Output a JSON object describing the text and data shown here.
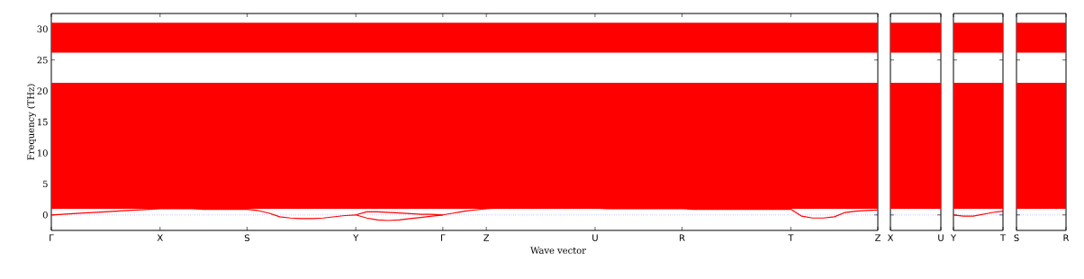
{
  "chart_data": [
    {
      "type": "line",
      "xlabel": "Wave vector",
      "ylabel": "Frequency (THz)",
      "ylim": [
        -2.5,
        32.5
      ],
      "categories": [
        "Γ",
        null,
        null,
        null,
        null,
        null,
        null,
        null,
        null,
        null,
        "X",
        null,
        null,
        null,
        null,
        null,
        null,
        null,
        "S",
        null,
        null,
        null,
        null,
        null,
        null,
        null,
        null,
        null,
        "Y",
        null,
        null,
        null,
        null,
        null,
        null,
        null,
        "Γ",
        null,
        null,
        null,
        "Z",
        null,
        null,
        null,
        null,
        null,
        null,
        null,
        null,
        null,
        "U",
        null,
        null,
        null,
        null,
        null,
        null,
        null,
        "R",
        null,
        null,
        null,
        null,
        null,
        null,
        null,
        null,
        null,
        "T",
        null,
        null,
        null,
        null,
        null,
        null,
        null,
        "Z"
      ],
      "yticks": [
        0,
        5,
        10,
        15,
        20,
        25,
        30
      ],
      "bands": [
        {
          "axis": "y",
          "from": 1.0,
          "to": 21.3,
          "color": "#ff0000"
        },
        {
          "axis": "y",
          "from": 26.2,
          "to": 31.0,
          "color": "#ff0000"
        }
      ],
      "ref_lines": [
        {
          "axis": "y",
          "value": 0,
          "color": "#0000ff",
          "line_style": "dotted"
        }
      ],
      "series": [
        {
          "color": "#ff0000",
          "values": [
            0,
            0.1,
            0.2,
            0.3,
            0.4,
            0.5,
            0.6,
            0.7,
            0.8,
            0.9,
            1.0,
            1.0,
            1.0,
            1.0,
            0.9,
            0.9,
            0.9,
            0.9,
            0.9,
            0.7,
            0.3,
            -0.3,
            -0.5,
            -0.6,
            -0.6,
            -0.5,
            -0.3,
            -0.1,
            0,
            -0.5,
            -0.8,
            -0.9,
            -0.8,
            -0.6,
            -0.4,
            -0.2,
            0,
            0.3,
            0.6,
            0.8,
            1.0,
            1.1,
            1.1,
            1.1,
            1.1,
            1.1,
            1.1,
            1.1,
            1.1,
            1.1,
            1.1,
            1.0,
            1.0,
            1.0,
            1.0,
            1.0,
            1.0,
            1.0,
            1.0,
            0.9,
            0.9,
            0.9,
            0.9,
            0.9,
            0.9,
            0.9,
            0.9,
            0.9,
            0.9,
            -0.2,
            -0.5,
            -0.5,
            -0.3,
            0.4,
            0.6,
            0.7,
            0.8
          ]
        },
        {
          "color": "#ff0000",
          "values": [
            null,
            null,
            null,
            null,
            null,
            null,
            null,
            null,
            null,
            null,
            null,
            null,
            null,
            null,
            null,
            null,
            null,
            null,
            null,
            null,
            null,
            null,
            null,
            null,
            null,
            null,
            null,
            null,
            0,
            0.5,
            0.5,
            0.4,
            0.3,
            0.2,
            0.1,
            0.1,
            0,
            null,
            null,
            null,
            null,
            null,
            null,
            null,
            null,
            null,
            null,
            null,
            null,
            null,
            null,
            null,
            null,
            null,
            null,
            null,
            null,
            null,
            null,
            null,
            null,
            null,
            null,
            null,
            null,
            null,
            null,
            null,
            null,
            null,
            null,
            null,
            null,
            null,
            null,
            null,
            null
          ]
        }
      ]
    },
    {
      "type": "line",
      "ylim": [
        -2.5,
        32.5
      ],
      "tick_labels": "x",
      "categories": [
        "X",
        null,
        null,
        null,
        null,
        "U"
      ],
      "yticks": [
        0,
        5,
        10,
        15,
        20,
        25,
        30
      ],
      "bands": [
        {
          "axis": "y",
          "from": 1.0,
          "to": 21.3,
          "color": "#ff0000"
        },
        {
          "axis": "y",
          "from": 26.2,
          "to": 31.0,
          "color": "#ff0000"
        }
      ],
      "ref_lines": [
        {
          "axis": "y",
          "value": 0,
          "color": "#0000ff",
          "line_style": "dotted"
        }
      ]
    },
    {
      "type": "line",
      "ylim": [
        -2.5,
        32.5
      ],
      "tick_labels": "x",
      "categories": [
        "Y",
        null,
        null,
        null,
        null,
        "T"
      ],
      "yticks": [
        0,
        5,
        10,
        15,
        20,
        25,
        30
      ],
      "bands": [
        {
          "axis": "y",
          "from": 1.0,
          "to": 21.3,
          "color": "#ff0000"
        },
        {
          "axis": "y",
          "from": 26.2,
          "to": 31.0,
          "color": "#ff0000"
        }
      ],
      "ref_lines": [
        {
          "axis": "y",
          "value": 0,
          "color": "#0000ff",
          "line_style": "dotted"
        }
      ],
      "series": [
        {
          "color": "#ff0000",
          "values": [
            0,
            -0.2,
            -0.2,
            0.1,
            0.4,
            0.6
          ]
        }
      ]
    },
    {
      "type": "line",
      "ylim": [
        -2.5,
        32.5
      ],
      "tick_labels": "x",
      "categories": [
        "S",
        null,
        null,
        null,
        null,
        "R"
      ],
      "yticks": [
        0,
        5,
        10,
        15,
        20,
        25,
        30
      ],
      "bands": [
        {
          "axis": "y",
          "from": 1.0,
          "to": 21.3,
          "color": "#ff0000"
        },
        {
          "axis": "y",
          "from": 26.2,
          "to": 31.0,
          "color": "#ff0000"
        }
      ],
      "ref_lines": [
        {
          "axis": "y",
          "value": 0,
          "color": "#0000ff",
          "line_style": "dotted"
        }
      ]
    }
  ]
}
